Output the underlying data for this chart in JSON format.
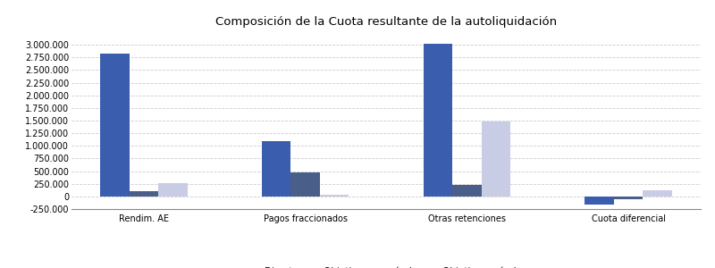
{
  "title": "Composición de la Cuota resultante de la autoliquidación",
  "categories": [
    "Rendim. AE",
    "Pagos fraccionados",
    "Otras retenciones",
    "Cuota diferencial"
  ],
  "series": {
    "Directa": [
      2820000,
      1100000,
      3020000,
      -170000
    ],
    "Objetiva no agrícola": [
      100000,
      470000,
      220000,
      -55000
    ],
    "Objetiva agrícola": [
      270000,
      30000,
      1480000,
      130000
    ]
  },
  "colors": {
    "Directa": "#3A5DAE",
    "Objetiva no agrícola": "#4A5E8A",
    "Objetiva agrícola": "#C8CCE4"
  },
  "ylim": [
    -250000,
    3250000
  ],
  "yticks": [
    -250000,
    0,
    250000,
    500000,
    750000,
    1000000,
    1250000,
    1500000,
    1750000,
    2000000,
    2250000,
    2500000,
    2750000,
    3000000
  ],
  "bar_width": 0.18,
  "background_color": "#FFFFFF",
  "grid_color": "#CCCCCC",
  "title_fontsize": 9.5,
  "tick_fontsize": 7,
  "legend_fontsize": 7.5
}
